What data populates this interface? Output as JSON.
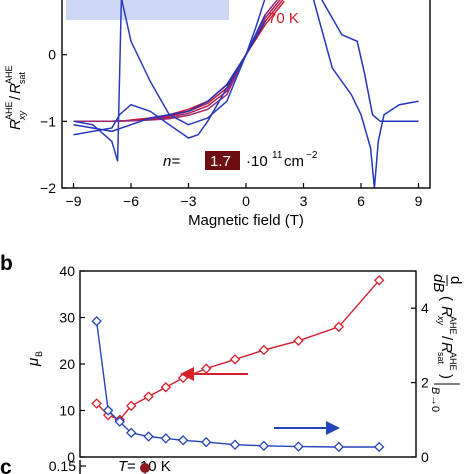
{
  "panels": {
    "b": "b",
    "c": "c"
  },
  "chart_data": [
    {
      "type": "line",
      "panel": "",
      "xlabel": "Magnetic field (T)",
      "ylabel_main": "R",
      "ylabel_sup": "AHE",
      "ylabel_sub": "xy",
      "ylabel_den": "R",
      "ylabel_den_sup": "AHE",
      "ylabel_den_sub": "sat",
      "xlim": [
        -9.6,
        9.6
      ],
      "ylim": [
        -2,
        0.85
      ],
      "xticks": [
        -9,
        -6,
        -3,
        0,
        3,
        6,
        9
      ],
      "yticks": [
        -2,
        -1,
        0
      ],
      "annotation_temp": "70 K",
      "annotation_density_prefix": "n=",
      "annotation_density_value": "1.7",
      "annotation_density_unit": "·10",
      "annotation_density_exp": "11",
      "annotation_density_unit2": "cm",
      "annotation_density_exp2": "−2",
      "colors": {
        "cold": "#2233bb",
        "hot": "#cc1a2a",
        "box": "#6e0e12",
        "band": "#cdd7f3"
      },
      "series": [
        {
          "x": [
            -9,
            -7,
            -6.5,
            -6,
            -5,
            -4,
            -3,
            -2,
            -1,
            0,
            1,
            2
          ],
          "y": [
            -1,
            -1,
            -1,
            -0.98,
            -0.95,
            -0.9,
            -0.82,
            -0.7,
            -0.45,
            0,
            0.45,
            0.8
          ]
        },
        {
          "x": [
            -9,
            -7,
            -6,
            -5,
            -4,
            -3,
            -2,
            -1,
            0,
            1,
            2
          ],
          "y": [
            -1,
            -1,
            -0.99,
            -0.96,
            -0.92,
            -0.85,
            -0.73,
            -0.5,
            0,
            0.5,
            0.85
          ]
        },
        {
          "x": [
            -9,
            -7,
            -6,
            -5,
            -4,
            -3,
            -2,
            -1,
            0,
            1,
            2
          ],
          "y": [
            -1,
            -1,
            -0.99,
            -0.97,
            -0.94,
            -0.88,
            -0.77,
            -0.55,
            0,
            0.55,
            0.9
          ]
        },
        {
          "x": [
            -9,
            -7,
            -6,
            -5,
            -4,
            -3,
            -2,
            -1,
            0,
            1,
            2
          ],
          "y": [
            -1,
            -1,
            -0.99,
            -0.98,
            -0.96,
            -0.91,
            -0.82,
            -0.6,
            0,
            0.6,
            0.95
          ]
        },
        {
          "x": [
            -9,
            -8,
            -7,
            -6.7,
            -6.5,
            -6,
            -5,
            -4,
            -3,
            -2,
            -1,
            -0.5,
            0,
            0.5,
            1
          ],
          "y": [
            -1,
            -1.05,
            -1.3,
            -1.6,
            0.85,
            0.2,
            -0.4,
            -0.9,
            -1.05,
            -0.95,
            -0.7,
            -0.35,
            0,
            0.4,
            0.85
          ]
        },
        {
          "x": [
            -9,
            -7,
            -6.6,
            -6,
            -5,
            -4,
            -3,
            -2.5,
            -2,
            -1,
            0,
            1
          ],
          "y": [
            -1.2,
            -1.1,
            -0.9,
            -0.75,
            -0.85,
            -1.05,
            -1.25,
            -1.2,
            -1.0,
            -0.5,
            0,
            0.6
          ]
        },
        {
          "x": [
            3.5,
            4.5,
            5.5,
            6,
            6.5,
            6.7,
            6.9,
            7.2,
            8,
            9
          ],
          "y": [
            0.85,
            -0.2,
            -0.6,
            -0.9,
            -1.4,
            -2.0,
            -1.3,
            -0.9,
            -0.75,
            -0.7
          ]
        },
        {
          "x": [
            3.9,
            5,
            5.8,
            6.2,
            6.6,
            7,
            8,
            9
          ],
          "y": [
            0.85,
            0.3,
            0.2,
            -0.3,
            -0.9,
            -1.0,
            -1.0,
            -1.0
          ]
        },
        {
          "x": [
            -9,
            -8,
            -7,
            -6,
            -5,
            -4,
            -3,
            -2,
            -1,
            0,
            1
          ],
          "y": [
            -1.05,
            -1.1,
            -1.15,
            -1.05,
            -0.95,
            -0.9,
            -0.85,
            -0.7,
            -0.45,
            0,
            0.5
          ]
        }
      ]
    },
    {
      "type": "line",
      "panel": "b",
      "ylabel_left": "μ",
      "ylabel_left_sub": "B",
      "ylabel_right": "d/dB (R_xy^AHE / R_sat^AHE)|B→0",
      "ylim_left": [
        0,
        40
      ],
      "ylim_right": [
        0,
        5
      ],
      "yticks_left": [
        0,
        10,
        20,
        30,
        40
      ],
      "yticks_right": [
        0,
        2,
        4
      ],
      "xlim": [
        -0.5,
        55
      ],
      "series": [
        {
          "name": "",
          "axis": "left",
          "color": "#d4202b",
          "x": [
            1,
            3,
            5,
            7,
            10,
            13,
            16,
            20,
            25,
            30,
            36,
            43,
            50
          ],
          "y": [
            11.5,
            9,
            8,
            11,
            13,
            15,
            17,
            19,
            21,
            23,
            25,
            28,
            38
          ]
        },
        {
          "name": "",
          "axis": "right",
          "color": "#2544b9",
          "x": [
            1,
            3,
            5,
            7,
            10,
            13,
            16,
            20,
            25,
            30,
            36,
            43,
            50
          ],
          "y": [
            3.65,
            1.25,
            0.95,
            0.65,
            0.55,
            0.5,
            0.45,
            0.4,
            0.33,
            0.3,
            0.28,
            0.27,
            0.27
          ]
        }
      ]
    },
    {
      "type": "scatter",
      "panel": "c",
      "annotation": "T = 10 K",
      "annotation_T": "T",
      "annotation_rest": " = 10 K",
      "ytick_visible": "0.15",
      "points": [
        {
          "x": 0,
          "y": 0.16
        }
      ]
    }
  ]
}
